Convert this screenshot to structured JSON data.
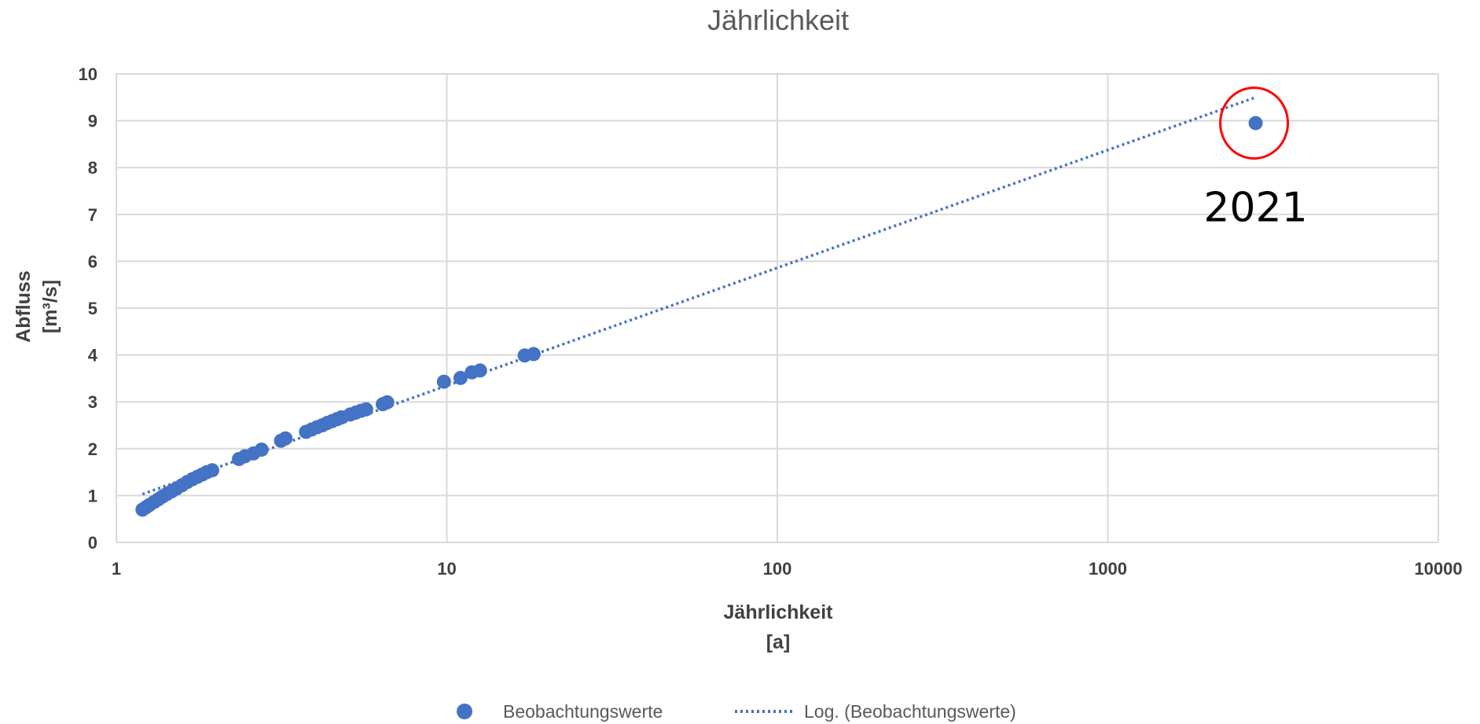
{
  "chart_data": {
    "type": "scatter",
    "title": "Jährlichkeit",
    "xlabel": [
      "Jährlichkeit",
      "[a]"
    ],
    "ylabel": [
      "Abfluss",
      "[m³/s]"
    ],
    "x_scale": "log",
    "xlim": [
      1,
      10000
    ],
    "ylim": [
      0,
      10
    ],
    "x_ticks": [
      1,
      10,
      100,
      1000,
      10000
    ],
    "x_tick_labels": [
      "1",
      "10",
      "100",
      "1000",
      "10000"
    ],
    "y_ticks": [
      0,
      1,
      2,
      3,
      4,
      5,
      6,
      7,
      8,
      9,
      10
    ],
    "y_tick_labels": [
      "0",
      "1",
      "2",
      "3",
      "4",
      "5",
      "6",
      "7",
      "8",
      "9",
      "10"
    ],
    "grid": true,
    "legend_position": "bottom",
    "series": [
      {
        "name": "Beobachtungswerte",
        "kind": "markers",
        "color": "#4472C4",
        "points": [
          [
            1.2,
            0.7
          ],
          [
            1.23,
            0.75
          ],
          [
            1.26,
            0.8
          ],
          [
            1.3,
            0.86
          ],
          [
            1.34,
            0.92
          ],
          [
            1.38,
            0.98
          ],
          [
            1.42,
            1.03
          ],
          [
            1.47,
            1.09
          ],
          [
            1.52,
            1.15
          ],
          [
            1.58,
            1.22
          ],
          [
            1.64,
            1.29
          ],
          [
            1.7,
            1.35
          ],
          [
            1.76,
            1.4
          ],
          [
            1.82,
            1.45
          ],
          [
            1.88,
            1.5
          ],
          [
            1.95,
            1.54
          ],
          [
            2.35,
            1.78
          ],
          [
            2.45,
            1.84
          ],
          [
            2.6,
            1.9
          ],
          [
            2.75,
            1.98
          ],
          [
            3.15,
            2.17
          ],
          [
            3.25,
            2.22
          ],
          [
            3.75,
            2.36
          ],
          [
            3.9,
            2.41
          ],
          [
            4.05,
            2.46
          ],
          [
            4.2,
            2.5
          ],
          [
            4.35,
            2.55
          ],
          [
            4.5,
            2.59
          ],
          [
            4.65,
            2.63
          ],
          [
            4.8,
            2.67
          ],
          [
            5.1,
            2.73
          ],
          [
            5.3,
            2.77
          ],
          [
            5.5,
            2.81
          ],
          [
            5.7,
            2.84
          ],
          [
            6.4,
            2.95
          ],
          [
            6.6,
            2.99
          ],
          [
            9.8,
            3.43
          ],
          [
            11.0,
            3.51
          ],
          [
            11.9,
            3.63
          ],
          [
            12.6,
            3.67
          ],
          [
            17.2,
            3.99
          ],
          [
            18.3,
            4.02
          ],
          [
            2800,
            8.95
          ]
        ]
      },
      {
        "name": "Log. (Beobachtungswerte)",
        "kind": "trendline",
        "style": "dotted",
        "color": "#4472C4",
        "x_range": [
          1.2,
          2800
        ],
        "y_range": [
          1.03,
          9.5
        ]
      }
    ],
    "annotations": [
      {
        "text": "2021",
        "x": 2800,
        "y": 8.95,
        "marker": "circle",
        "color": "#FF0000"
      }
    ]
  }
}
